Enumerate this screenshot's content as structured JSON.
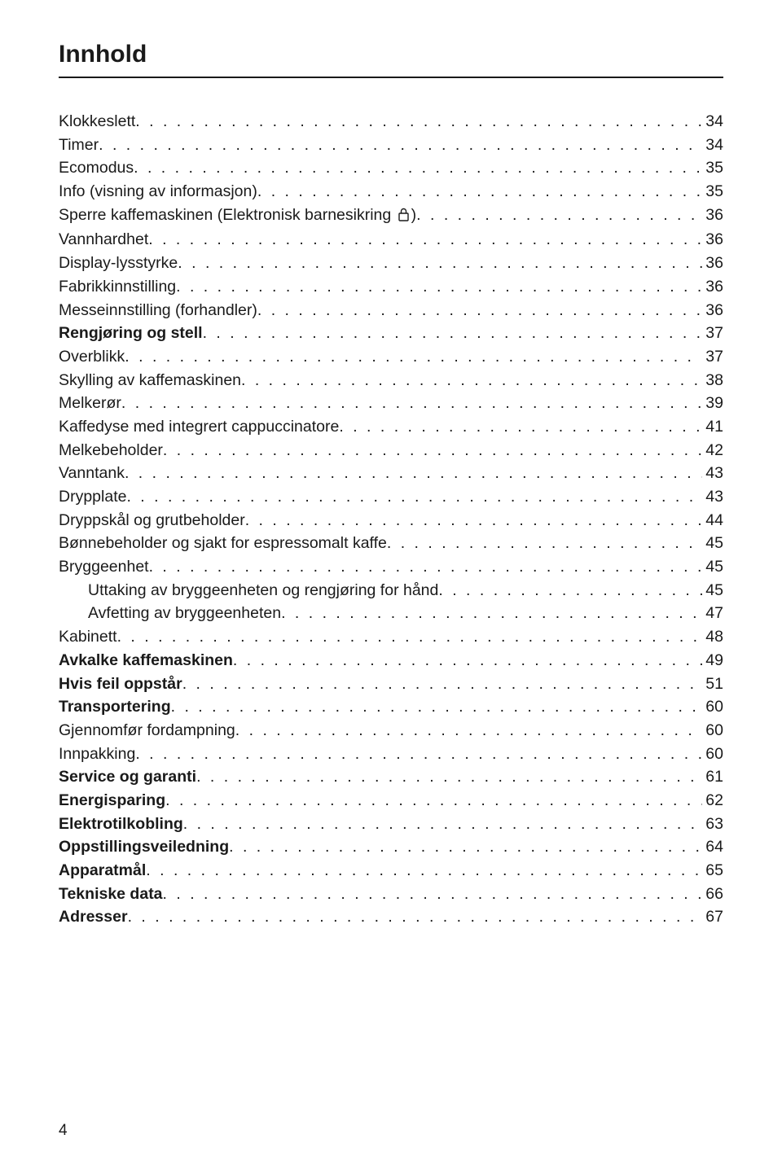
{
  "title": "Innhold",
  "page_number": "4",
  "colors": {
    "text": "#1a1a1a",
    "background": "#ffffff"
  },
  "typography": {
    "title_fontsize": 30,
    "body_fontsize": 19.5
  },
  "entries": [
    {
      "label": "Klokkeslett",
      "page": "34",
      "bold": false,
      "indent": 0
    },
    {
      "label": "Timer",
      "page": "34",
      "bold": false,
      "indent": 0
    },
    {
      "label": "Ecomodus",
      "page": "35",
      "bold": false,
      "indent": 0
    },
    {
      "label": "Info (visning av informasjon)",
      "page": "35",
      "bold": false,
      "indent": 0
    },
    {
      "label": "Sperre kaffemaskinen (Elektronisk barnesikring {LOCK})",
      "page": "36",
      "bold": false,
      "indent": 0
    },
    {
      "label": "Vannhardhet",
      "page": "36",
      "bold": false,
      "indent": 0
    },
    {
      "label": "Display-lysstyrke",
      "page": "36",
      "bold": false,
      "indent": 0
    },
    {
      "label": "Fabrikkinnstilling",
      "page": "36",
      "bold": false,
      "indent": 0
    },
    {
      "label": "Messeinnstilling (forhandler)",
      "page": "36",
      "bold": false,
      "indent": 0
    },
    {
      "label": "Rengjøring og stell",
      "page": "37",
      "bold": true,
      "indent": 0
    },
    {
      "label": "Overblikk",
      "page": "37",
      "bold": false,
      "indent": 0
    },
    {
      "label": "Skylling av kaffemaskinen",
      "page": "38",
      "bold": false,
      "indent": 0
    },
    {
      "label": "Melkerør",
      "page": "39",
      "bold": false,
      "indent": 0
    },
    {
      "label": "Kaffedyse med integrert cappuccinatore",
      "page": "41",
      "bold": false,
      "indent": 0
    },
    {
      "label": "Melkebeholder",
      "page": "42",
      "bold": false,
      "indent": 0
    },
    {
      "label": "Vanntank",
      "page": "43",
      "bold": false,
      "indent": 0
    },
    {
      "label": "Drypplate",
      "page": "43",
      "bold": false,
      "indent": 0
    },
    {
      "label": "Dryppskål og grutbeholder",
      "page": "44",
      "bold": false,
      "indent": 0
    },
    {
      "label": "Bønnebeholder og sjakt for espressomalt kaffe",
      "page": "45",
      "bold": false,
      "indent": 0
    },
    {
      "label": "Bryggeenhet",
      "page": "45",
      "bold": false,
      "indent": 0
    },
    {
      "label": "Uttaking av bryggeenheten og rengjøring for hånd",
      "page": "45",
      "bold": false,
      "indent": 1
    },
    {
      "label": "Avfetting av bryggeenheten",
      "page": "47",
      "bold": false,
      "indent": 1
    },
    {
      "label": "Kabinett",
      "page": "48",
      "bold": false,
      "indent": 0
    },
    {
      "label": "Avkalke kaffemaskinen",
      "page": "49",
      "bold": true,
      "indent": 0
    },
    {
      "label": "Hvis feil oppstår",
      "page": "51",
      "bold": true,
      "indent": 0
    },
    {
      "label": "Transportering",
      "page": "60",
      "bold": true,
      "indent": 0
    },
    {
      "label": "Gjennomfør fordampning",
      "page": "60",
      "bold": false,
      "indent": 0
    },
    {
      "label": "Innpakking",
      "page": "60",
      "bold": false,
      "indent": 0
    },
    {
      "label": "Service og garanti",
      "page": "61",
      "bold": true,
      "indent": 0
    },
    {
      "label": "Energisparing",
      "page": "62",
      "bold": true,
      "indent": 0
    },
    {
      "label": "Elektrotilkobling",
      "page": "63",
      "bold": true,
      "indent": 0
    },
    {
      "label": "Oppstillingsveiledning",
      "page": "64",
      "bold": true,
      "indent": 0
    },
    {
      "label": "Apparatmål",
      "page": "65",
      "bold": true,
      "indent": 0
    },
    {
      "label": "Tekniske data",
      "page": "66",
      "bold": true,
      "indent": 0
    },
    {
      "label": "Adresser",
      "page": "67",
      "bold": true,
      "indent": 0
    }
  ]
}
